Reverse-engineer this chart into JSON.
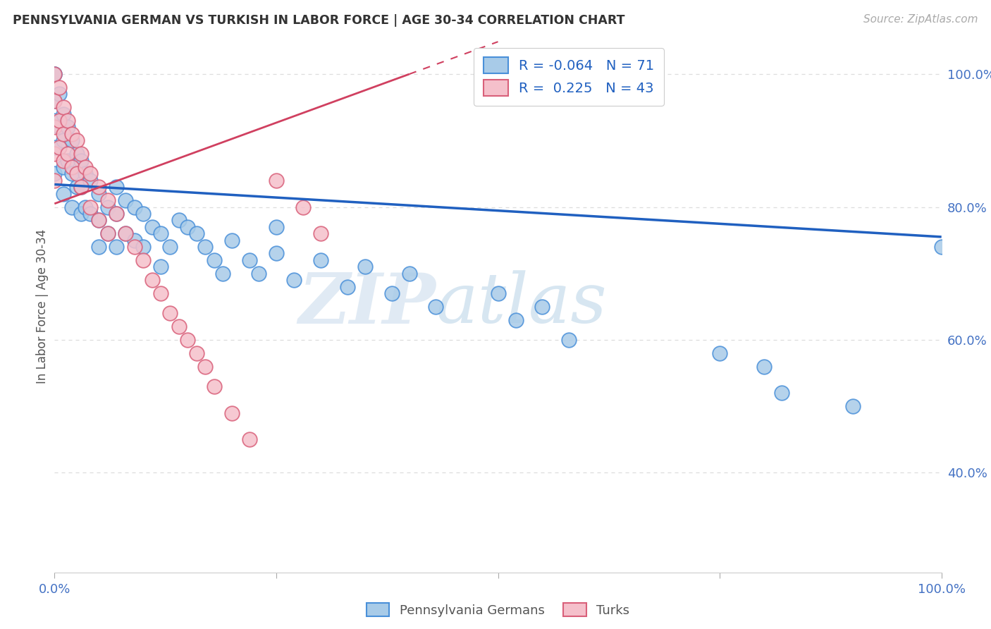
{
  "title": "PENNSYLVANIA GERMAN VS TURKISH IN LABOR FORCE | AGE 30-34 CORRELATION CHART",
  "source": "Source: ZipAtlas.com",
  "ylabel": "In Labor Force | Age 30-34",
  "xlim": [
    0.0,
    1.0
  ],
  "ylim": [
    0.25,
    1.05
  ],
  "ytick_positions": [
    0.4,
    0.6,
    0.8,
    1.0
  ],
  "ytick_labels": [
    "40.0%",
    "60.0%",
    "80.0%",
    "100.0%"
  ],
  "xtick_positions": [
    0.0,
    1.0
  ],
  "xtick_labels": [
    "0.0%",
    "100.0%"
  ],
  "blue_color": "#A8CBE8",
  "blue_edge_color": "#4A90D9",
  "pink_color": "#F5C0CB",
  "pink_edge_color": "#D9607A",
  "blue_line_color": "#2060C0",
  "pink_line_color": "#D04060",
  "legend_blue_r": "-0.064",
  "legend_blue_n": "71",
  "legend_pink_r": "0.225",
  "legend_pink_n": "43",
  "watermark_left": "ZIP",
  "watermark_right": "atlas",
  "grid_color": "#DDDDDD",
  "blue_line_y0": 0.834,
  "blue_line_y1": 0.755,
  "pink_line_y0": 0.805,
  "pink_line_y1": 1.0,
  "pink_line_x1": 0.4,
  "blue_x": [
    0.0,
    0.0,
    0.0,
    0.0,
    0.0,
    0.0,
    0.005,
    0.005,
    0.01,
    0.01,
    0.01,
    0.01,
    0.015,
    0.015,
    0.02,
    0.02,
    0.02,
    0.025,
    0.025,
    0.03,
    0.03,
    0.03,
    0.035,
    0.035,
    0.04,
    0.04,
    0.05,
    0.05,
    0.05,
    0.06,
    0.06,
    0.07,
    0.07,
    0.07,
    0.08,
    0.08,
    0.09,
    0.09,
    0.1,
    0.1,
    0.11,
    0.12,
    0.12,
    0.13,
    0.14,
    0.15,
    0.16,
    0.17,
    0.18,
    0.19,
    0.2,
    0.22,
    0.23,
    0.25,
    0.25,
    0.27,
    0.3,
    0.33,
    0.35,
    0.38,
    0.4,
    0.43,
    0.5,
    0.52,
    0.55,
    0.58,
    0.75,
    0.8,
    0.82,
    0.9,
    1.0
  ],
  "blue_y": [
    1.0,
    1.0,
    0.96,
    0.93,
    0.89,
    0.85,
    0.97,
    0.92,
    0.94,
    0.9,
    0.86,
    0.82,
    0.92,
    0.87,
    0.9,
    0.85,
    0.8,
    0.88,
    0.83,
    0.87,
    0.83,
    0.79,
    0.85,
    0.8,
    0.84,
    0.79,
    0.82,
    0.78,
    0.74,
    0.8,
    0.76,
    0.83,
    0.79,
    0.74,
    0.81,
    0.76,
    0.8,
    0.75,
    0.79,
    0.74,
    0.77,
    0.76,
    0.71,
    0.74,
    0.78,
    0.77,
    0.76,
    0.74,
    0.72,
    0.7,
    0.75,
    0.72,
    0.7,
    0.77,
    0.73,
    0.69,
    0.72,
    0.68,
    0.71,
    0.67,
    0.7,
    0.65,
    0.67,
    0.63,
    0.65,
    0.6,
    0.58,
    0.56,
    0.52,
    0.5,
    0.74
  ],
  "pink_x": [
    0.0,
    0.0,
    0.0,
    0.0,
    0.0,
    0.005,
    0.005,
    0.005,
    0.01,
    0.01,
    0.01,
    0.015,
    0.015,
    0.02,
    0.02,
    0.025,
    0.025,
    0.03,
    0.03,
    0.035,
    0.04,
    0.04,
    0.05,
    0.05,
    0.06,
    0.06,
    0.07,
    0.08,
    0.09,
    0.1,
    0.11,
    0.12,
    0.13,
    0.14,
    0.15,
    0.16,
    0.17,
    0.18,
    0.2,
    0.22,
    0.25,
    0.28,
    0.3
  ],
  "pink_y": [
    1.0,
    0.96,
    0.92,
    0.88,
    0.84,
    0.98,
    0.93,
    0.89,
    0.95,
    0.91,
    0.87,
    0.93,
    0.88,
    0.91,
    0.86,
    0.9,
    0.85,
    0.88,
    0.83,
    0.86,
    0.85,
    0.8,
    0.83,
    0.78,
    0.81,
    0.76,
    0.79,
    0.76,
    0.74,
    0.72,
    0.69,
    0.67,
    0.64,
    0.62,
    0.6,
    0.58,
    0.56,
    0.53,
    0.49,
    0.45,
    0.84,
    0.8,
    0.76
  ]
}
